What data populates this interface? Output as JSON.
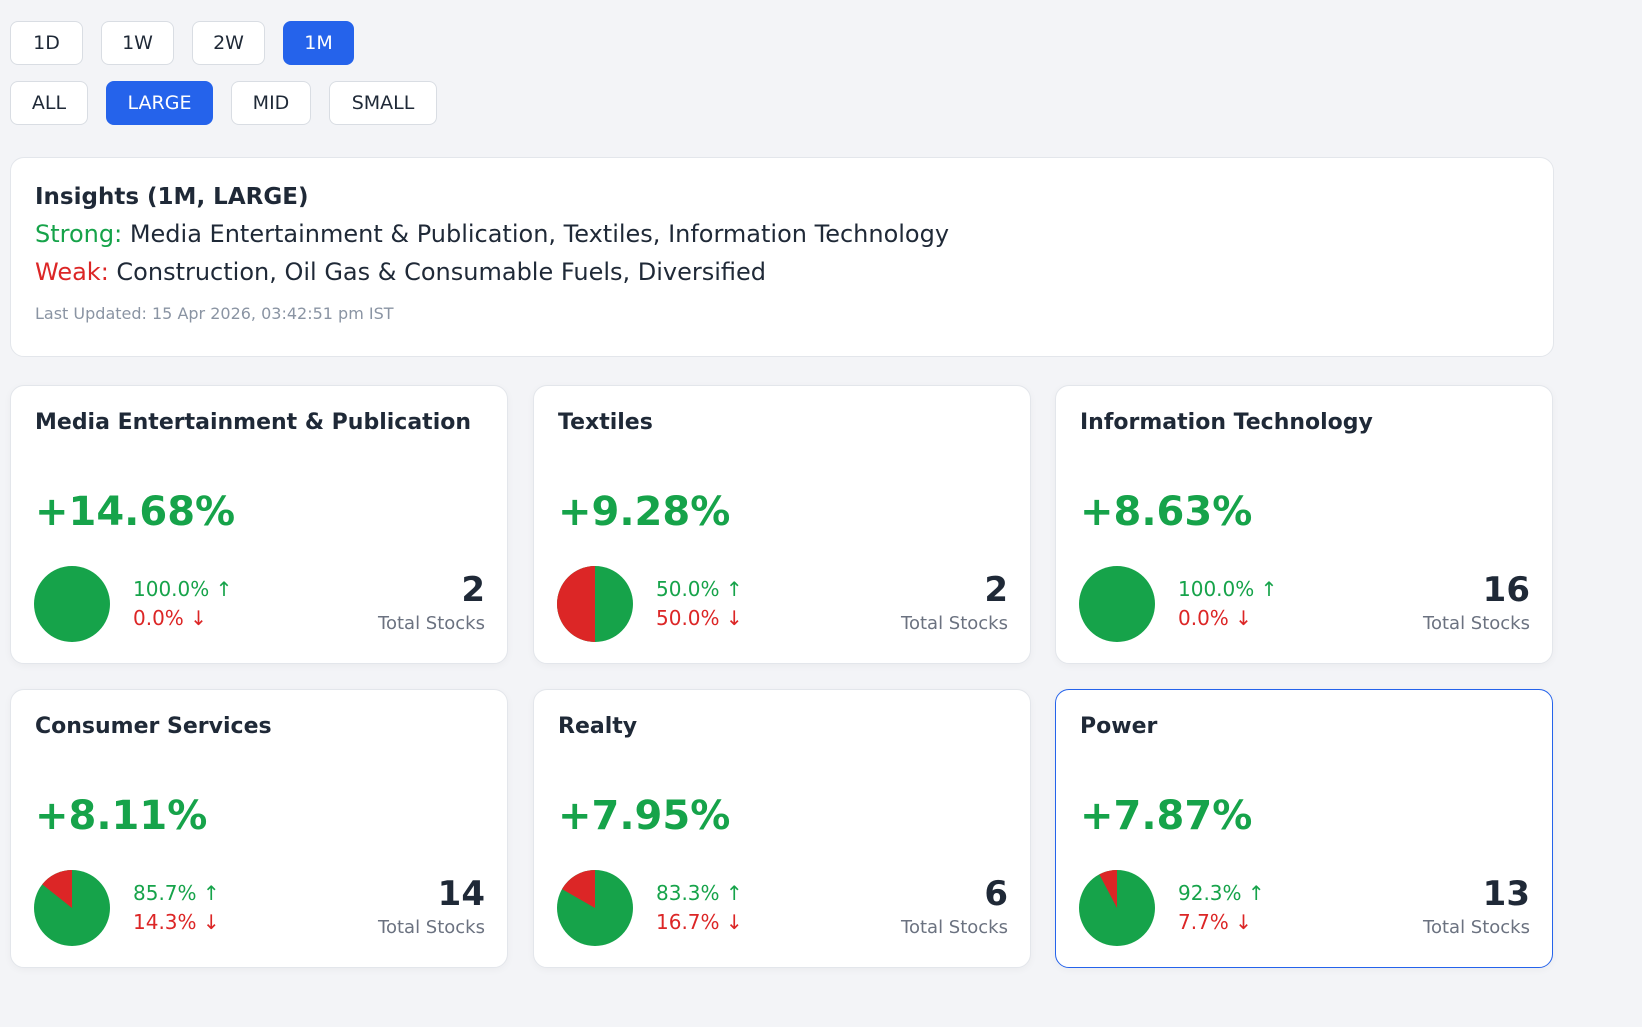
{
  "period_buttons": [
    {
      "label": "1D",
      "active": false
    },
    {
      "label": "1W",
      "active": false
    },
    {
      "label": "2W",
      "active": false
    },
    {
      "label": "1M",
      "active": true
    }
  ],
  "cap_buttons": [
    {
      "label": "ALL",
      "active": false
    },
    {
      "label": "LARGE",
      "active": true
    },
    {
      "label": "MID",
      "active": false
    },
    {
      "label": "SMALL",
      "active": false
    }
  ],
  "insights": {
    "title": "Insights (1M, LARGE)",
    "strong_label": "Strong:",
    "strong_text": " Media Entertainment & Publication, Textiles, Information Technology",
    "weak_label": "Weak:",
    "weak_text": " Construction, Oil Gas & Consumable Fuels, Diversified",
    "last_updated": "Last Updated: 15 Apr 2026, 03:42:51 pm IST"
  },
  "colors": {
    "positive": "#16a34a",
    "negative": "#dc2626",
    "accent": "#2563eb"
  },
  "total_label": "Total Stocks",
  "sectors": [
    {
      "name": "Media Entertainment & Publication",
      "change": "+14.68%",
      "up_pct": "100.0% ↑",
      "down_pct": "0.0% ↓",
      "up_fraction": 1.0,
      "total": "2"
    },
    {
      "name": "Textiles",
      "change": "+9.28%",
      "up_pct": "50.0% ↑",
      "down_pct": "50.0% ↓",
      "up_fraction": 0.5,
      "total": "2"
    },
    {
      "name": "Information Technology",
      "change": "+8.63%",
      "up_pct": "100.0% ↑",
      "down_pct": "0.0% ↓",
      "up_fraction": 1.0,
      "total": "16"
    },
    {
      "name": "Consumer Services",
      "change": "+8.11%",
      "up_pct": "85.7% ↑",
      "down_pct": "14.3% ↓",
      "up_fraction": 0.857,
      "total": "14"
    },
    {
      "name": "Realty",
      "change": "+7.95%",
      "up_pct": "83.3% ↑",
      "down_pct": "16.7% ↓",
      "up_fraction": 0.833,
      "total": "6"
    },
    {
      "name": "Power",
      "change": "+7.87%",
      "up_pct": "92.3% ↑",
      "down_pct": "7.7% ↓",
      "up_fraction": 0.923,
      "total": "13",
      "selected": true
    }
  ]
}
